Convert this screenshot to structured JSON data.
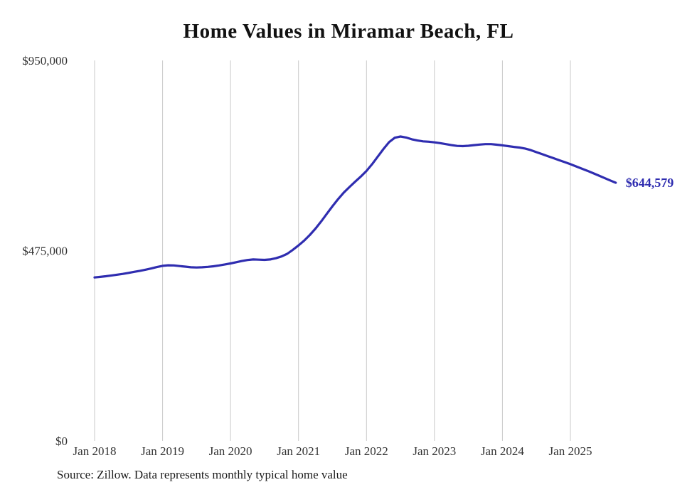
{
  "title": "Home Values in Miramar Beach, FL",
  "source_note": "Source: Zillow. Data represents monthly typical home value",
  "colors": {
    "line": "#2f2db0",
    "grid": "#c9c9c9",
    "axis_text": "#333333",
    "title_text": "#111111",
    "background": "#ffffff"
  },
  "chart_data": {
    "type": "line",
    "title": "Home Values in Miramar Beach, FL",
    "xlabel": "",
    "ylabel": "",
    "ylim": [
      0,
      950000
    ],
    "y_ticks": [
      950000,
      475000,
      0
    ],
    "y_tick_labels": [
      "$950,000",
      "$475,000",
      "$0"
    ],
    "x_tick_labels": [
      "Jan 2018",
      "Jan 2019",
      "Jan 2020",
      "Jan 2021",
      "Jan 2022",
      "Jan 2023",
      "Jan 2024",
      "Jan 2025"
    ],
    "grid": "vertical-only",
    "legend": "none",
    "series": [
      {
        "name": "Typical home value",
        "latest_value": 644579,
        "latest_label": "$644,579",
        "x": [
          "2018-01",
          "2018-02",
          "2018-03",
          "2018-04",
          "2018-05",
          "2018-06",
          "2018-07",
          "2018-08",
          "2018-09",
          "2018-10",
          "2018-11",
          "2018-12",
          "2019-01",
          "2019-02",
          "2019-03",
          "2019-04",
          "2019-05",
          "2019-06",
          "2019-07",
          "2019-08",
          "2019-09",
          "2019-10",
          "2019-11",
          "2019-12",
          "2020-01",
          "2020-02",
          "2020-03",
          "2020-04",
          "2020-05",
          "2020-06",
          "2020-07",
          "2020-08",
          "2020-09",
          "2020-10",
          "2020-11",
          "2020-12",
          "2021-01",
          "2021-02",
          "2021-03",
          "2021-04",
          "2021-05",
          "2021-06",
          "2021-07",
          "2021-08",
          "2021-09",
          "2021-10",
          "2021-11",
          "2021-12",
          "2022-01",
          "2022-02",
          "2022-03",
          "2022-04",
          "2022-05",
          "2022-06",
          "2022-07",
          "2022-08",
          "2022-09",
          "2022-10",
          "2022-11",
          "2022-12",
          "2023-01",
          "2023-02",
          "2023-03",
          "2023-04",
          "2023-05",
          "2023-06",
          "2023-07",
          "2023-08",
          "2023-09",
          "2023-10",
          "2023-11",
          "2023-12",
          "2024-01",
          "2024-02",
          "2024-03",
          "2024-04",
          "2024-05",
          "2024-06",
          "2024-07",
          "2024-08",
          "2024-09",
          "2024-10",
          "2024-11",
          "2024-12",
          "2025-01",
          "2025-02",
          "2025-03",
          "2025-04",
          "2025-05",
          "2025-06",
          "2025-07",
          "2025-08",
          "2025-09"
        ],
        "values": [
          408000,
          409500,
          411000,
          413000,
          415000,
          417000,
          419500,
          422000,
          424500,
          427500,
          430500,
          434000,
          437000,
          438500,
          438000,
          436500,
          435000,
          433500,
          433000,
          433500,
          434500,
          436000,
          438000,
          440500,
          443000,
          446000,
          449000,
          451500,
          453000,
          452500,
          452000,
          453000,
          456000,
          460500,
          467000,
          477000,
          488000,
          500000,
          514000,
          530000,
          548000,
          567000,
          586000,
          604000,
          620000,
          634000,
          647000,
          660000,
          674000,
          691000,
          710000,
          729000,
          746000,
          757000,
          760000,
          757500,
          753000,
          750000,
          748000,
          747000,
          745500,
          743500,
          741000,
          738500,
          736500,
          736000,
          737000,
          738500,
          740000,
          741000,
          741000,
          739500,
          738000,
          736000,
          734000,
          732500,
          730000,
          726000,
          721000,
          716000,
          711000,
          706000,
          701000,
          696000,
          691000,
          685500,
          680000,
          674500,
          668500,
          662500,
          656500,
          650500,
          644579
        ]
      }
    ]
  }
}
